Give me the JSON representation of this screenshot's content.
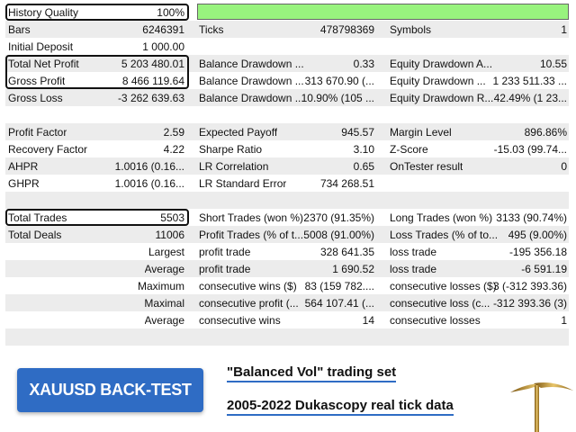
{
  "colors": {
    "quality_bar": "#98f37e",
    "banner": "#2f6cc4",
    "underline": "#2f6cc4"
  },
  "history_quality": {
    "percent": 100
  },
  "rows": [
    [
      "History Quality",
      "100%",
      "",
      "",
      "",
      ""
    ],
    [
      "Bars",
      "6246391",
      "Ticks",
      "478798369",
      "Symbols",
      "1"
    ],
    [
      "Initial Deposit",
      "1 000.00",
      "",
      "",
      "",
      ""
    ],
    [
      "Total Net Profit",
      "5 203 480.01",
      "Balance Drawdown ...",
      "0.33",
      "Equity Drawdown A...",
      "10.55"
    ],
    [
      "Gross Profit",
      "8 466 119.64",
      "Balance Drawdown ...",
      "313 670.90 (...",
      "Equity Drawdown ...",
      "1 233 511.33 ..."
    ],
    [
      "Gross Loss",
      "-3 262 639.63",
      "Balance Drawdown ...",
      "10.90% (105 ...",
      "Equity Drawdown R...",
      "42.49% (1 23..."
    ],
    [
      "",
      "",
      "",
      "",
      "",
      ""
    ],
    [
      "Profit Factor",
      "2.59",
      "Expected Payoff",
      "945.57",
      "Margin Level",
      "896.86%"
    ],
    [
      "Recovery Factor",
      "4.22",
      "Sharpe Ratio",
      "3.10",
      "Z-Score",
      "-15.03 (99.74..."
    ],
    [
      "AHPR",
      "1.0016 (0.16...",
      "LR Correlation",
      "0.65",
      "OnTester result",
      "0"
    ],
    [
      "GHPR",
      "1.0016 (0.16...",
      "LR Standard Error",
      "734 268.51",
      "",
      ""
    ],
    [
      "",
      "",
      "",
      "",
      "",
      ""
    ],
    [
      "Total Trades",
      "5503",
      "Short Trades (won %)",
      "2370 (91.35%)",
      "Long Trades (won %)",
      "3133 (90.74%)"
    ],
    [
      "Total Deals",
      "11006",
      "Profit Trades (% of t...",
      "5008 (91.00%)",
      "Loss Trades (% of to...",
      "495 (9.00%)"
    ],
    [
      "",
      "Largest",
      "profit trade",
      "328 641.35",
      "loss trade",
      "-195 356.18"
    ],
    [
      "",
      "Average",
      "profit trade",
      "1 690.52",
      "loss trade",
      "-6 591.19"
    ],
    [
      "",
      "Maximum",
      "consecutive wins ($)",
      "83 (159 782....",
      "consecutive losses ($)",
      "3 (-312 393.36)"
    ],
    [
      "",
      "Maximal",
      "consecutive profit (...",
      "564 107.41 (...",
      "consecutive loss (c...",
      "-312 393.36 (3)"
    ],
    [
      "",
      "Average",
      "consecutive wins",
      "14",
      "consecutive losses",
      "1"
    ],
    [
      "",
      "",
      "",
      "",
      "",
      ""
    ]
  ],
  "banner": {
    "label": "XAUUSD BACK-TEST"
  },
  "captions": {
    "line1": "\"Balanced Vol\" trading set",
    "line2": "2005-2022 Dukascopy real tick data"
  },
  "icons": {
    "decoration": "pickaxe-icon"
  }
}
